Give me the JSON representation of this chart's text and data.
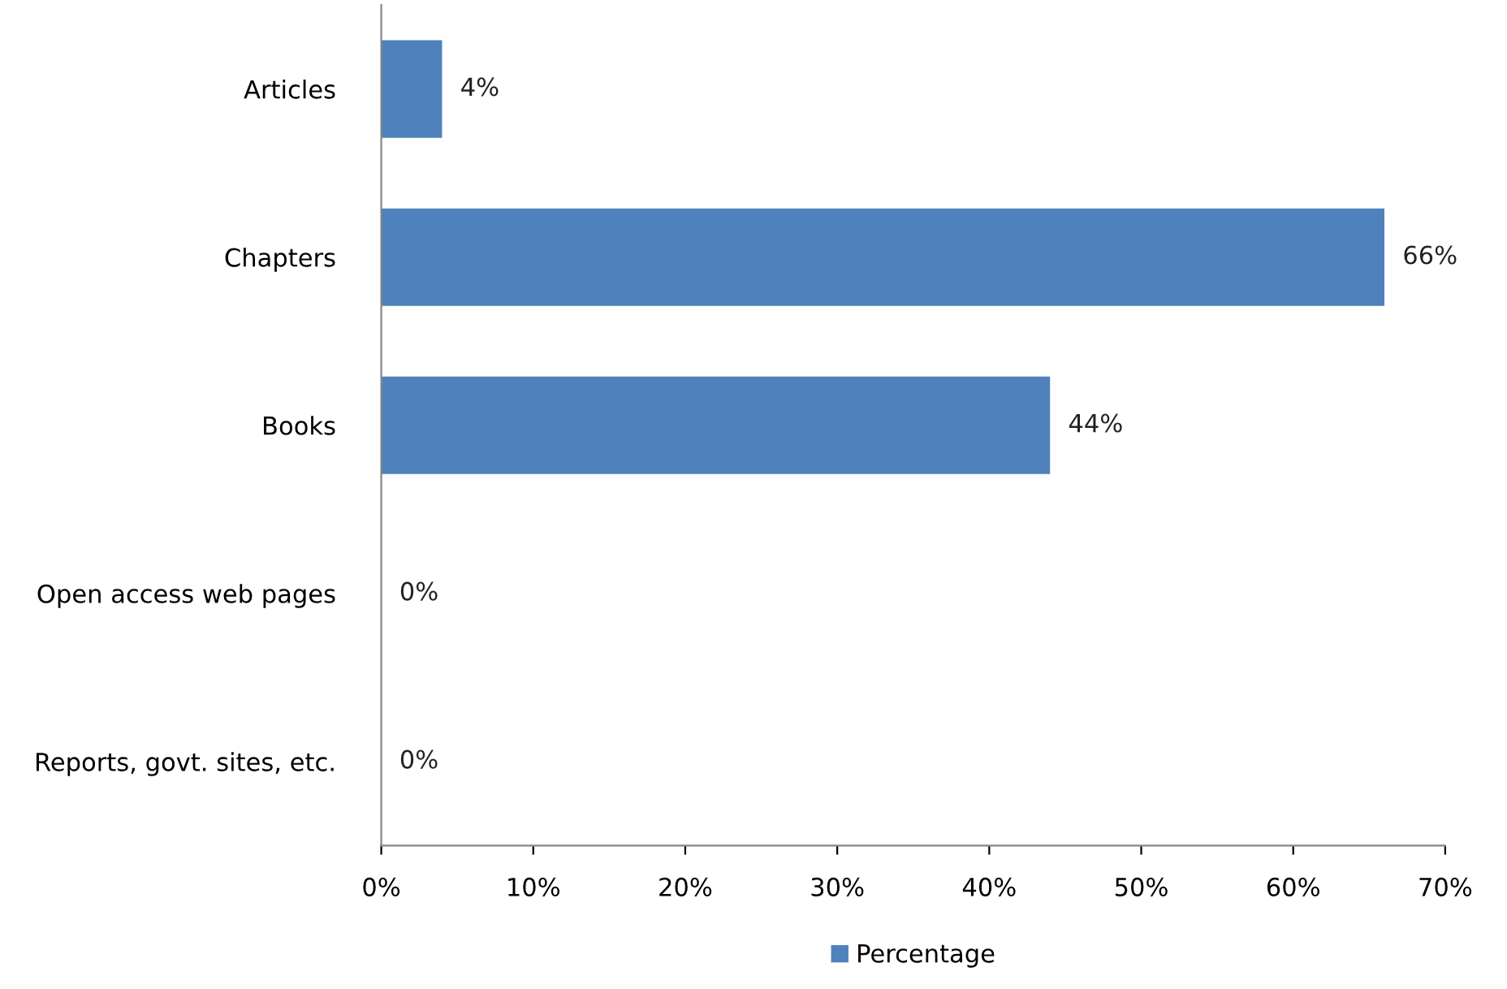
{
  "chart_data": {
    "type": "bar",
    "orientation": "horizontal",
    "categories": [
      "Articles",
      "Chapters",
      "Books",
      "Open access web pages",
      "Reports, govt. sites, etc."
    ],
    "series": [
      {
        "name": "Percentage",
        "color": "#4f81bd",
        "values": [
          4,
          66,
          44,
          0,
          0
        ],
        "value_labels": [
          "4%",
          "66%",
          "44%",
          "0%",
          "0%"
        ]
      }
    ],
    "xlim": [
      0,
      70
    ],
    "xticks": [
      {
        "value": 0,
        "label": "0%"
      },
      {
        "value": 10,
        "label": "10%"
      },
      {
        "value": 20,
        "label": "20%"
      },
      {
        "value": 30,
        "label": "30%"
      },
      {
        "value": 40,
        "label": "40%"
      },
      {
        "value": 50,
        "label": "50%"
      },
      {
        "value": 60,
        "label": "60%"
      },
      {
        "value": 70,
        "label": "70%"
      }
    ],
    "grid": false,
    "legend": "bottom"
  }
}
